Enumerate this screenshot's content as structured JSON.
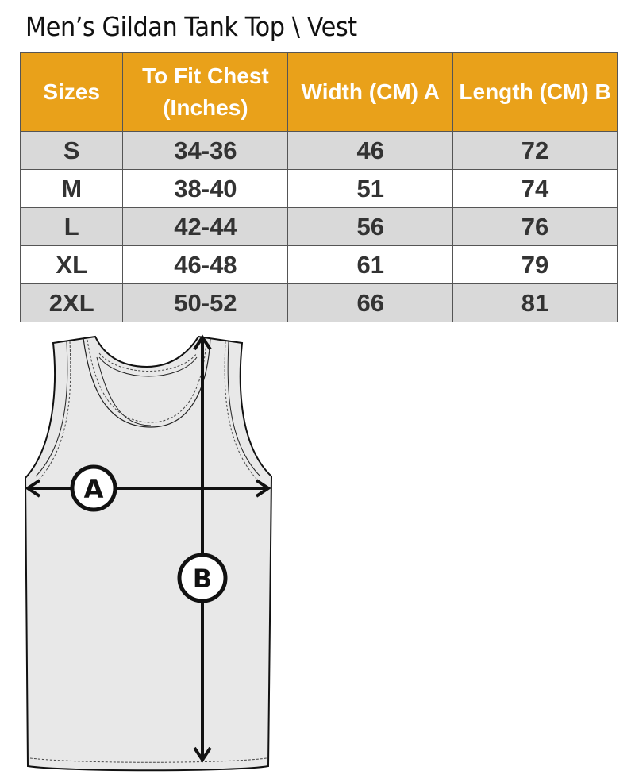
{
  "title": "Men’s Gildan Tank Top \\ Vest",
  "table": {
    "headers": [
      "Sizes",
      "To Fit Chest (Inches)",
      "Width (CM) A",
      "Length  (CM) B"
    ],
    "rows": [
      [
        "S",
        "34-36",
        "46",
        "72"
      ],
      [
        "M",
        "38-40",
        "51",
        "74"
      ],
      [
        "L",
        "42-44",
        "56",
        "76"
      ],
      [
        "XL",
        "46-48",
        "61",
        "79"
      ],
      [
        "2XL",
        "50-52",
        "66",
        "81"
      ]
    ]
  },
  "diagram": {
    "label_a": "A",
    "label_b": "B"
  },
  "colors": {
    "header": "#E9A11A",
    "stripe": "#d9d9d9"
  }
}
